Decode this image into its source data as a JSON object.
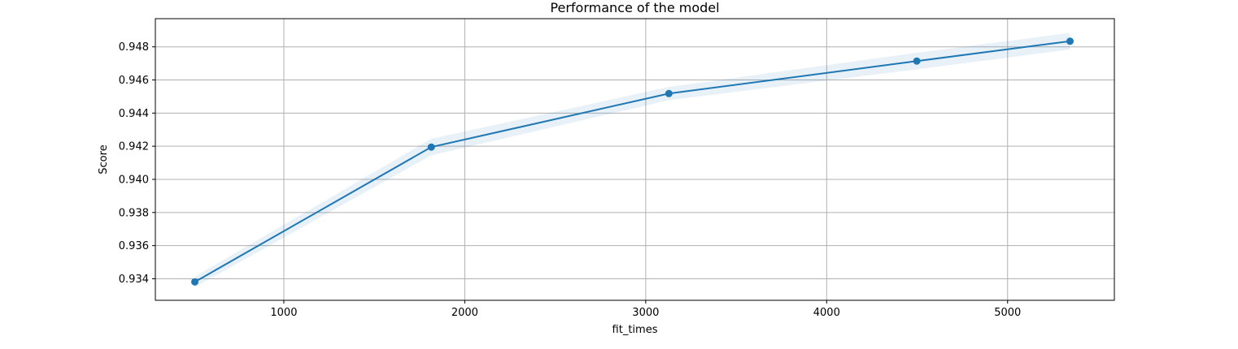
{
  "chart_data": {
    "type": "line",
    "title": "Performance of the model",
    "xlabel": "fit_times",
    "ylabel": "Score",
    "xlim": [
      290,
      5590
    ],
    "ylim": [
      0.9327,
      0.9497
    ],
    "xticks": [
      1000,
      2000,
      3000,
      4000,
      5000
    ],
    "xtick_labels": [
      "1000",
      "2000",
      "3000",
      "4000",
      "5000"
    ],
    "yticks": [
      0.934,
      0.936,
      0.938,
      0.94,
      0.942,
      0.944,
      0.946,
      0.948
    ],
    "ytick_labels": [
      "0.934",
      "0.936",
      "0.938",
      "0.940",
      "0.942",
      "0.944",
      "0.946",
      "0.948"
    ],
    "grid": true,
    "series": [
      {
        "x": [
          508,
          1815,
          3128,
          4498,
          5345
        ],
        "y": [
          0.93381,
          0.94195,
          0.94518,
          0.94714,
          0.94834
        ],
        "band_upper": [
          0.93413,
          0.94245,
          0.94558,
          0.94764,
          0.94884
        ],
        "band_lower": [
          0.93349,
          0.94145,
          0.94478,
          0.94664,
          0.94784
        ],
        "color": "#1f77b4",
        "band_color": "#1f77b4",
        "band_opacity": 0.1,
        "marker": "circle"
      }
    ]
  }
}
